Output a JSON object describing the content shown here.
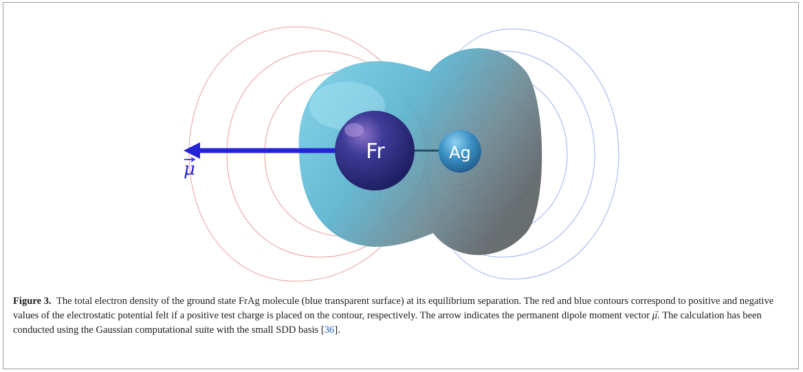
{
  "figure": {
    "atoms": {
      "fr_label": "Fr",
      "ag_label": "Ag"
    },
    "dipole_symbol": "μ",
    "colors": {
      "positive_contour": "#e58b8b",
      "negative_contour": "#8ea9ef",
      "density_surface": "#63bfdc",
      "fr_atom": "#2e2f86",
      "ag_atom": "#3a93c8",
      "dipole_arrow": "#2323d8"
    }
  },
  "caption": {
    "label": "Figure 3.",
    "text_1": "The total electron density of the ground state FrAg molecule (blue transparent surface) at its equilibrium separation. The red and blue contours correspond to positive and negative values of the electrostatic potential felt if a positive test charge is placed on the contour, respectively. The arrow indicates the permanent dipole moment vector ",
    "mu_symbol": "μ",
    "text_2": ". The calculation has been conducted using the Gaussian computational suite with the small SDD basis [",
    "citation": "36",
    "text_3": "]."
  }
}
